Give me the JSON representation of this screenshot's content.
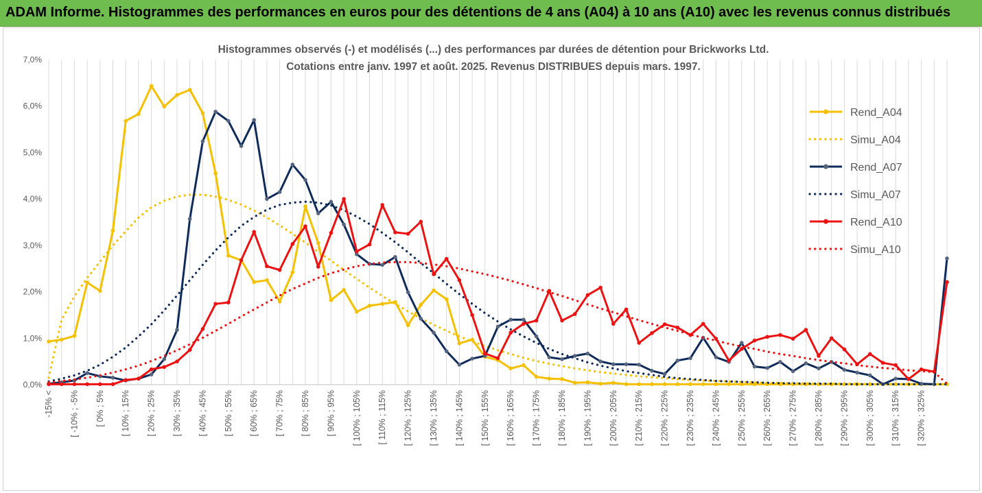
{
  "banner": {
    "title": "ADAM Informe. Histogrammes des performances en euros pour des détentions de 4 ans (A04) à 10 ans (A10) avec les revenus connus distribués"
  },
  "colors": {
    "banner_bg": "#70bd4f",
    "a04": "#f5c000",
    "a07": "#0f2b5b",
    "a10": "#ee1111",
    "grid": "#d9d9d9",
    "text": "#595959"
  },
  "chart_data": {
    "type": "line",
    "title": [
      "Histogrammes observés (-) et modélisés (...) des performances par durées de détention pour Brickworks Ltd.",
      "Cotations entre janv. 1997 et août. 2025. Revenus DISTRIBUES depuis mars. 1997."
    ],
    "y_ticks": [
      "0,0%",
      "1,0%",
      "2,0%",
      "3,0%",
      "4,0%",
      "5,0%",
      "6,0%",
      "7,0%"
    ],
    "ylim": [
      0,
      7
    ],
    "y_unit": "%",
    "grid": "vertical",
    "legend_position": "right",
    "x_tick_labels": [
      "-15% <",
      "[ -10% ; -5%",
      "[ 0% ; 5%",
      "[ 10% ; 15%",
      "[ 20% ; 25%",
      "[ 30% ; 35%",
      "[ 40% ; 45%",
      "[ 50% ; 55%",
      "[ 60% ; 65%",
      "[ 70% ; 75%",
      "[ 80% ; 85%",
      "[ 90% ; 95%",
      "[ 100% ; 105%",
      "[ 110% ; 115%",
      "[ 120% ; 125%",
      "[ 130% ; 135%",
      "[ 140% ; 145%",
      "[ 150% ; 155%",
      "[ 160% ; 165%",
      "[ 170% ; 175%",
      "[ 180% ; 185%",
      "[ 190% ; 195%",
      "[ 200% ; 205%",
      "[ 210% ; 215%",
      "[ 220% ; 225%",
      "[ 230% ; 235%",
      "[ 240% ; 245%",
      "[ 250% ; 255%",
      "[ 260% ; 265%",
      "[ 270% ; 275%",
      "[ 280% ; 285%",
      "[ 290% ; 295%",
      "[ 300% ; 305%",
      "[ 310% ; 315%",
      "[ 320% ; 325%"
    ],
    "series": [
      {
        "name": "Rend_A04",
        "style": "solid",
        "color": "#f5c000",
        "values": [
          0.93,
          0.97,
          1.05,
          2.2,
          2.02,
          3.32,
          5.68,
          5.83,
          6.43,
          5.99,
          6.24,
          6.35,
          5.85,
          4.55,
          2.78,
          2.68,
          2.21,
          2.25,
          1.79,
          2.42,
          3.84,
          3.05,
          1.82,
          2.04,
          1.57,
          1.7,
          1.74,
          1.78,
          1.28,
          1.72,
          2.03,
          1.84,
          0.89,
          0.97,
          0.6,
          0.53,
          0.35,
          0.42,
          0.17,
          0.13,
          0.12,
          0.04,
          0.05,
          0.02,
          0.04,
          0.01,
          0.01,
          0.01,
          0.01,
          0.01,
          0.01,
          0.01,
          0.01,
          0.01,
          0.01,
          0.01,
          0.01,
          0.01,
          0.01,
          0.01,
          0.01,
          0.01,
          0.01,
          0.01,
          0.01,
          0.01,
          0.01,
          0.01,
          0.01,
          0.01,
          0.01
        ]
      },
      {
        "name": "Simu_A04",
        "style": "dotted",
        "color": "#f5c000",
        "values": [
          0.15,
          1.4,
          1.9,
          2.3,
          2.65,
          3.0,
          3.3,
          3.6,
          3.82,
          3.96,
          4.05,
          4.09,
          4.09,
          4.05,
          3.98,
          3.88,
          3.75,
          3.6,
          3.43,
          3.25,
          3.06,
          2.86,
          2.67,
          2.47,
          2.28,
          2.09,
          1.91,
          1.74,
          1.58,
          1.43,
          1.29,
          1.16,
          1.04,
          0.93,
          0.83,
          0.74,
          0.66,
          0.58,
          0.51,
          0.45,
          0.4,
          0.35,
          0.31,
          0.27,
          0.24,
          0.21,
          0.18,
          0.16,
          0.14,
          0.12,
          0.1,
          0.09,
          0.08,
          0.07,
          0.06,
          0.05,
          0.04,
          0.04,
          0.03,
          0.03,
          0.02,
          0.02,
          0.02,
          0.02,
          0.01,
          0.01,
          0.01,
          0.01,
          0.01,
          0.01,
          0.01
        ]
      },
      {
        "name": "Rend_A07",
        "style": "solid",
        "color": "#0f2b5b",
        "values": [
          0.02,
          0.05,
          0.09,
          0.25,
          0.18,
          0.15,
          0.09,
          0.13,
          0.22,
          0.55,
          1.18,
          3.57,
          5.24,
          5.88,
          5.68,
          5.14,
          5.7,
          4.0,
          4.15,
          4.74,
          4.41,
          3.69,
          3.94,
          3.45,
          2.81,
          2.6,
          2.58,
          2.75,
          1.99,
          1.42,
          1.12,
          0.72,
          0.43,
          0.56,
          0.62,
          1.25,
          1.4,
          1.4,
          1.04,
          0.59,
          0.55,
          0.62,
          0.67,
          0.5,
          0.44,
          0.44,
          0.43,
          0.3,
          0.23,
          0.52,
          0.57,
          1.01,
          0.59,
          0.49,
          0.9,
          0.39,
          0.36,
          0.49,
          0.29,
          0.46,
          0.35,
          0.49,
          0.32,
          0.26,
          0.2,
          0.01,
          0.13,
          0.12,
          0.02,
          0.01,
          2.72
        ]
      },
      {
        "name": "Simu_A07",
        "style": "dotted",
        "color": "#0f2b5b",
        "values": [
          0.07,
          0.13,
          0.2,
          0.3,
          0.43,
          0.6,
          0.8,
          1.04,
          1.3,
          1.6,
          1.92,
          2.25,
          2.58,
          2.89,
          3.17,
          3.42,
          3.61,
          3.77,
          3.87,
          3.92,
          3.94,
          3.92,
          3.86,
          3.76,
          3.62,
          3.46,
          3.27,
          3.07,
          2.85,
          2.62,
          2.4,
          2.17,
          1.95,
          1.74,
          1.54,
          1.36,
          1.19,
          1.04,
          0.9,
          0.77,
          0.66,
          0.57,
          0.48,
          0.41,
          0.35,
          0.29,
          0.25,
          0.21,
          0.17,
          0.14,
          0.12,
          0.1,
          0.08,
          0.07,
          0.06,
          0.05,
          0.04,
          0.03,
          0.03,
          0.02,
          0.02,
          0.02,
          0.01,
          0.01,
          0.01,
          0.01,
          0.01,
          0.01,
          0.01,
          0.01,
          0.01
        ]
      },
      {
        "name": "Rend_A10",
        "style": "solid",
        "color": "#ee1111",
        "values": [
          0.01,
          0.01,
          0.01,
          0.01,
          0.01,
          0.01,
          0.1,
          0.13,
          0.33,
          0.38,
          0.5,
          0.75,
          1.2,
          1.74,
          1.77,
          2.68,
          3.29,
          2.55,
          2.47,
          3.03,
          3.41,
          2.54,
          3.27,
          4.0,
          2.87,
          3.02,
          3.87,
          3.28,
          3.25,
          3.51,
          2.38,
          2.71,
          2.25,
          1.5,
          0.67,
          0.57,
          1.12,
          1.31,
          1.38,
          2.02,
          1.38,
          1.52,
          1.93,
          2.09,
          1.31,
          1.62,
          0.9,
          1.11,
          1.3,
          1.23,
          1.07,
          1.31,
          0.99,
          0.52,
          0.77,
          0.95,
          1.03,
          1.07,
          0.99,
          1.18,
          0.62,
          1.0,
          0.76,
          0.44,
          0.66,
          0.47,
          0.42,
          0.12,
          0.33,
          0.28,
          2.21
        ]
      },
      {
        "name": "Simu_A10",
        "style": "dotted",
        "color": "#ee1111",
        "values": [
          0.05,
          0.08,
          0.11,
          0.15,
          0.2,
          0.26,
          0.33,
          0.41,
          0.51,
          0.62,
          0.74,
          0.87,
          1.01,
          1.16,
          1.31,
          1.47,
          1.62,
          1.77,
          1.92,
          2.06,
          2.18,
          2.3,
          2.4,
          2.48,
          2.55,
          2.6,
          2.63,
          2.64,
          2.64,
          2.62,
          2.59,
          2.55,
          2.5,
          2.44,
          2.38,
          2.31,
          2.24,
          2.16,
          2.08,
          1.99,
          1.91,
          1.82,
          1.73,
          1.64,
          1.56,
          1.47,
          1.39,
          1.31,
          1.23,
          1.16,
          1.08,
          1.01,
          0.95,
          0.88,
          0.82,
          0.77,
          0.71,
          0.66,
          0.62,
          0.57,
          0.53,
          0.49,
          0.46,
          0.42,
          0.39,
          0.36,
          0.34,
          0.31,
          0.29,
          0.27,
          0.02
        ]
      }
    ]
  }
}
